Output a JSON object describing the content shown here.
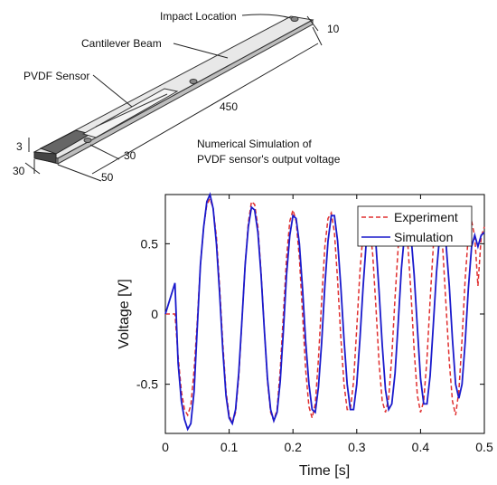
{
  "diagram": {
    "impact_label": "Impact Location",
    "beam_label": "Cantilever Beam",
    "sensor_label": "PVDF Sensor",
    "dim_width": "10",
    "dim_length": "450",
    "dim_thickness": "3",
    "dim_clamp_width": "30",
    "dim_clamp_length": "50",
    "dim_sensor_offset": "30",
    "caption_line1": "Numerical Simulation of",
    "caption_line2": "PVDF sensor's output voltage"
  },
  "chart_data": {
    "type": "line",
    "title": "",
    "xlabel": "Time [s]",
    "ylabel": "Voltage [V]",
    "xlim": [
      0,
      0.5
    ],
    "ylim": [
      -0.85,
      0.85
    ],
    "xticks": [
      0,
      0.1,
      0.2,
      0.3,
      0.4,
      0.5
    ],
    "xtick_labels": [
      "0",
      "0.1",
      "0.2",
      "0.3",
      "0.4",
      "0.5"
    ],
    "yticks": [
      0.5,
      0,
      -0.5
    ],
    "ytick_labels": [
      "0.5",
      "0",
      "-0.5"
    ],
    "legend": "top-right",
    "series": [
      {
        "name": "Experiment",
        "color": "#e03030",
        "style": "dashed",
        "x": [
          0.0,
          0.015,
          0.02,
          0.025,
          0.03,
          0.035,
          0.04,
          0.045,
          0.05,
          0.055,
          0.06,
          0.065,
          0.07,
          0.075,
          0.08,
          0.085,
          0.09,
          0.095,
          0.1,
          0.105,
          0.11,
          0.115,
          0.12,
          0.125,
          0.13,
          0.135,
          0.14,
          0.145,
          0.15,
          0.155,
          0.16,
          0.165,
          0.17,
          0.175,
          0.18,
          0.185,
          0.19,
          0.195,
          0.2,
          0.205,
          0.21,
          0.215,
          0.22,
          0.225,
          0.23,
          0.235,
          0.24,
          0.245,
          0.25,
          0.255,
          0.26,
          0.265,
          0.27,
          0.275,
          0.28,
          0.285,
          0.29,
          0.295,
          0.3,
          0.305,
          0.31,
          0.315,
          0.32,
          0.325,
          0.33,
          0.335,
          0.34,
          0.345,
          0.35,
          0.355,
          0.36,
          0.365,
          0.37,
          0.375,
          0.38,
          0.385,
          0.39,
          0.395,
          0.4,
          0.405,
          0.41,
          0.415,
          0.42,
          0.425,
          0.43,
          0.435,
          0.44,
          0.445,
          0.45,
          0.455,
          0.46,
          0.465,
          0.47,
          0.475,
          0.48,
          0.485,
          0.49,
          0.495,
          0.5
        ],
        "y": [
          0.0,
          0.0,
          -0.3,
          -0.55,
          -0.68,
          -0.72,
          -0.65,
          -0.4,
          -0.05,
          0.35,
          0.62,
          0.78,
          0.82,
          0.75,
          0.55,
          0.2,
          -0.2,
          -0.55,
          -0.72,
          -0.78,
          -0.7,
          -0.45,
          -0.05,
          0.35,
          0.65,
          0.8,
          0.78,
          0.62,
          0.3,
          -0.1,
          -0.48,
          -0.7,
          -0.76,
          -0.68,
          -0.4,
          0.0,
          0.4,
          0.66,
          0.74,
          0.66,
          0.4,
          0.0,
          -0.4,
          -0.66,
          -0.74,
          -0.64,
          -0.32,
          0.1,
          0.48,
          0.68,
          0.72,
          0.58,
          0.24,
          -0.16,
          -0.5,
          -0.68,
          -0.68,
          -0.48,
          -0.1,
          0.3,
          0.58,
          0.7,
          0.66,
          0.42,
          0.05,
          -0.35,
          -0.62,
          -0.7,
          -0.6,
          -0.3,
          0.12,
          0.48,
          0.66,
          0.68,
          0.5,
          0.15,
          -0.26,
          -0.58,
          -0.7,
          -0.62,
          -0.32,
          0.1,
          0.48,
          0.66,
          0.66,
          0.45,
          0.06,
          -0.34,
          -0.62,
          -0.72,
          -0.55,
          -0.18,
          0.25,
          0.56,
          0.66,
          0.55,
          0.2,
          0.55,
          0.62
        ]
      },
      {
        "name": "Simulation",
        "color": "#1a1acc",
        "style": "solid",
        "x": [
          0.0,
          0.015,
          0.02,
          0.025,
          0.03,
          0.035,
          0.04,
          0.045,
          0.05,
          0.055,
          0.06,
          0.065,
          0.07,
          0.075,
          0.08,
          0.085,
          0.09,
          0.095,
          0.1,
          0.105,
          0.11,
          0.115,
          0.12,
          0.125,
          0.13,
          0.135,
          0.14,
          0.145,
          0.15,
          0.155,
          0.16,
          0.165,
          0.17,
          0.175,
          0.18,
          0.185,
          0.19,
          0.195,
          0.2,
          0.205,
          0.21,
          0.215,
          0.22,
          0.225,
          0.23,
          0.235,
          0.24,
          0.245,
          0.25,
          0.255,
          0.26,
          0.265,
          0.27,
          0.275,
          0.28,
          0.285,
          0.29,
          0.295,
          0.3,
          0.305,
          0.31,
          0.315,
          0.32,
          0.325,
          0.33,
          0.335,
          0.34,
          0.345,
          0.35,
          0.355,
          0.36,
          0.365,
          0.37,
          0.375,
          0.38,
          0.385,
          0.39,
          0.395,
          0.4,
          0.405,
          0.41,
          0.415,
          0.42,
          0.425,
          0.43,
          0.435,
          0.44,
          0.445,
          0.45,
          0.455,
          0.46,
          0.465,
          0.47,
          0.475,
          0.48,
          0.485,
          0.49,
          0.495,
          0.5
        ],
        "y": [
          0.0,
          0.22,
          -0.35,
          -0.62,
          -0.75,
          -0.82,
          -0.78,
          -0.55,
          -0.1,
          0.35,
          0.62,
          0.8,
          0.85,
          0.75,
          0.5,
          0.15,
          -0.25,
          -0.58,
          -0.74,
          -0.78,
          -0.68,
          -0.42,
          -0.05,
          0.35,
          0.62,
          0.76,
          0.74,
          0.58,
          0.28,
          -0.1,
          -0.46,
          -0.68,
          -0.76,
          -0.7,
          -0.48,
          -0.12,
          0.28,
          0.56,
          0.7,
          0.68,
          0.5,
          0.18,
          -0.2,
          -0.5,
          -0.68,
          -0.7,
          -0.52,
          -0.2,
          0.2,
          0.52,
          0.7,
          0.7,
          0.52,
          0.2,
          -0.18,
          -0.5,
          -0.68,
          -0.68,
          -0.5,
          -0.18,
          0.2,
          0.52,
          0.68,
          0.68,
          0.5,
          0.16,
          -0.22,
          -0.54,
          -0.68,
          -0.64,
          -0.42,
          -0.06,
          0.32,
          0.58,
          0.66,
          0.56,
          0.28,
          -0.1,
          -0.46,
          -0.64,
          -0.64,
          -0.44,
          -0.08,
          0.3,
          0.56,
          0.62,
          0.5,
          0.2,
          -0.18,
          -0.5,
          -0.6,
          -0.5,
          -0.2,
          0.18,
          0.48,
          0.56,
          0.48,
          0.56,
          0.58
        ]
      }
    ]
  }
}
